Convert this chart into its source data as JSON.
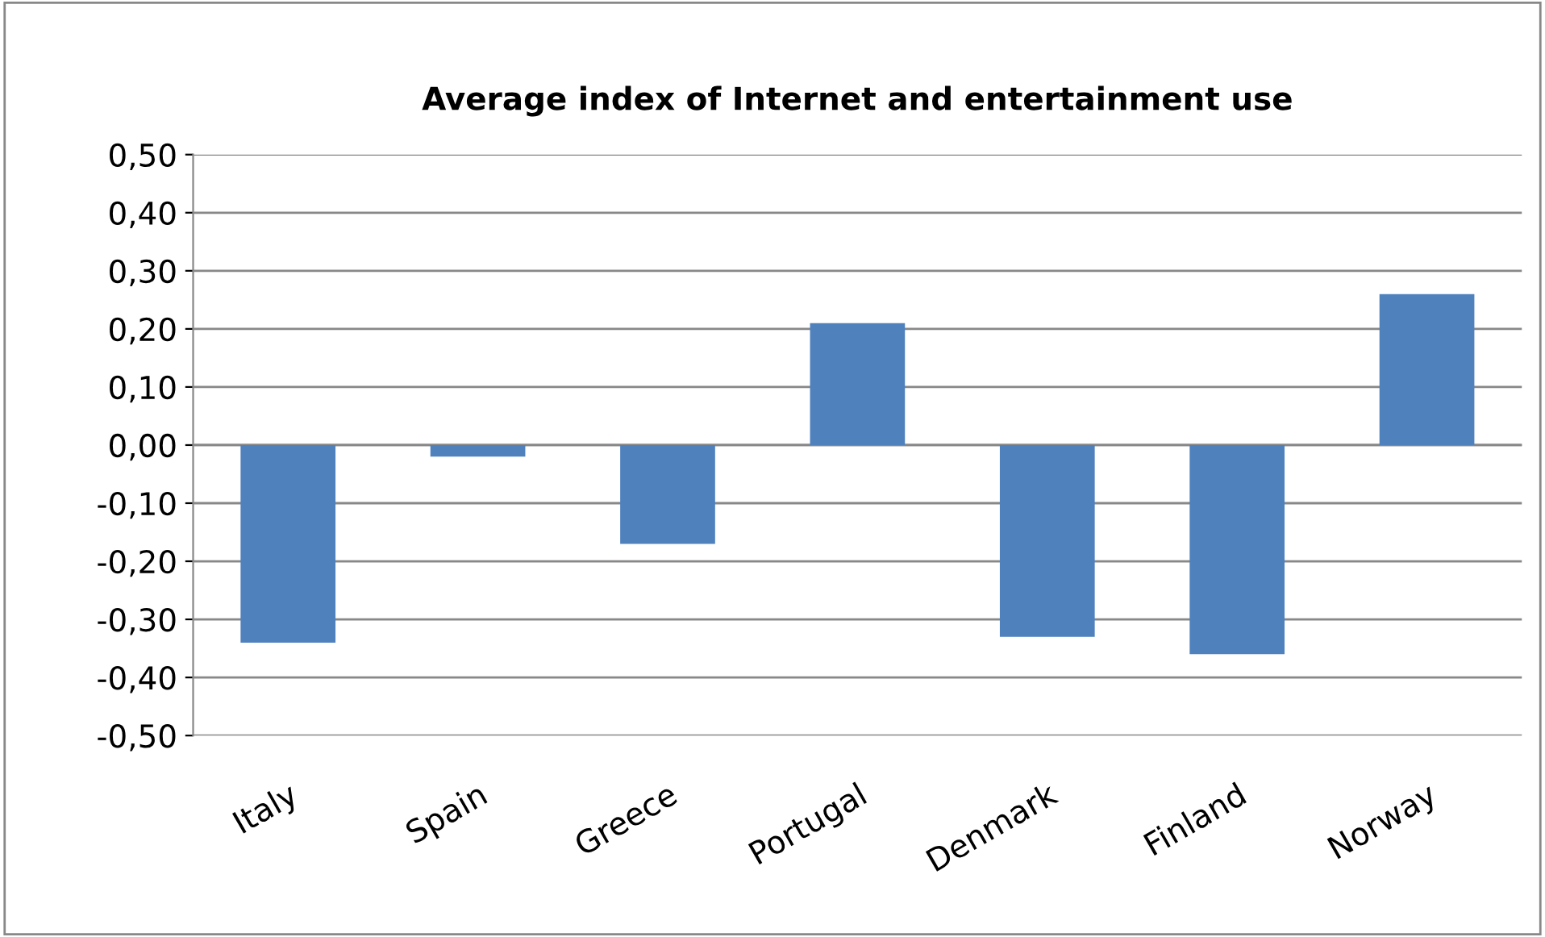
{
  "chart_data": {
    "type": "bar",
    "title": "Average index of Internet and entertainment use",
    "categories": [
      "Italy",
      "Spain",
      "Greece",
      "Portugal",
      "Denmark",
      "Finland",
      "Norway"
    ],
    "values": [
      -0.34,
      -0.02,
      -0.17,
      0.21,
      -0.33,
      -0.36,
      0.26
    ],
    "color": "#4f81bd",
    "ylim": [
      -0.5,
      0.5
    ],
    "yticks": [
      {
        "value": -0.5,
        "label": "-0,50"
      },
      {
        "value": -0.4,
        "label": "-0,40"
      },
      {
        "value": -0.3,
        "label": "-0,30"
      },
      {
        "value": -0.2,
        "label": "-0,20"
      },
      {
        "value": -0.1,
        "label": "-0,10"
      },
      {
        "value": 0,
        "label": "0,00"
      },
      {
        "value": 0.1,
        "label": "0,10"
      },
      {
        "value": 0.2,
        "label": "0,20"
      },
      {
        "value": 0.3,
        "label": "0,30"
      },
      {
        "value": 0.4,
        "label": "0,40"
      },
      {
        "value": 0.5,
        "label": "0,50"
      }
    ],
    "grid": "y",
    "legend": false
  }
}
